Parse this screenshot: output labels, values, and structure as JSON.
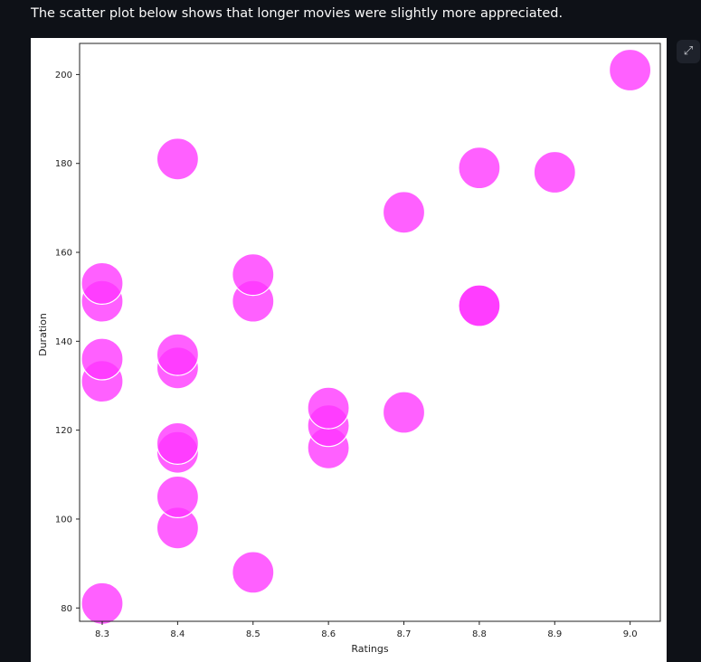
{
  "page": {
    "intro_text": "The scatter plot below shows that longer movies were slightly more appreciated."
  },
  "toolbar": {
    "expand_icon": "expand-icon"
  },
  "colors": {
    "background": "#0e1117",
    "text": "#fafafa",
    "marker": "#ff33ff",
    "marker_edge": "#ffffff"
  },
  "chart_data": {
    "type": "scatter",
    "title": "",
    "xlabel": "Ratings",
    "ylabel": "Duration",
    "xlim": [
      8.27,
      9.04
    ],
    "ylim": [
      77,
      207
    ],
    "xticks": [
      8.3,
      8.4,
      8.5,
      8.6,
      8.7,
      8.8,
      8.9,
      9.0
    ],
    "xtick_labels": [
      "8.3",
      "8.4",
      "8.5",
      "8.6",
      "8.7",
      "8.8",
      "8.9",
      "9.0"
    ],
    "yticks": [
      80,
      100,
      120,
      140,
      160,
      180,
      200
    ],
    "ytick_labels": [
      "80",
      "100",
      "120",
      "140",
      "160",
      "180",
      "200"
    ],
    "grid": false,
    "legend": "none",
    "points": [
      {
        "x": 8.3,
        "y": 81
      },
      {
        "x": 8.3,
        "y": 131
      },
      {
        "x": 8.3,
        "y": 136
      },
      {
        "x": 8.3,
        "y": 149
      },
      {
        "x": 8.3,
        "y": 153
      },
      {
        "x": 8.4,
        "y": 98
      },
      {
        "x": 8.4,
        "y": 105
      },
      {
        "x": 8.4,
        "y": 115
      },
      {
        "x": 8.4,
        "y": 117
      },
      {
        "x": 8.4,
        "y": 134
      },
      {
        "x": 8.4,
        "y": 137
      },
      {
        "x": 8.4,
        "y": 181
      },
      {
        "x": 8.5,
        "y": 88
      },
      {
        "x": 8.5,
        "y": 149
      },
      {
        "x": 8.5,
        "y": 155
      },
      {
        "x": 8.6,
        "y": 116
      },
      {
        "x": 8.6,
        "y": 121
      },
      {
        "x": 8.6,
        "y": 125
      },
      {
        "x": 8.7,
        "y": 124
      },
      {
        "x": 8.7,
        "y": 169
      },
      {
        "x": 8.8,
        "y": 148
      },
      {
        "x": 8.8,
        "y": 148
      },
      {
        "x": 8.8,
        "y": 179
      },
      {
        "x": 8.9,
        "y": 178
      },
      {
        "x": 9.0,
        "y": 201
      }
    ]
  }
}
